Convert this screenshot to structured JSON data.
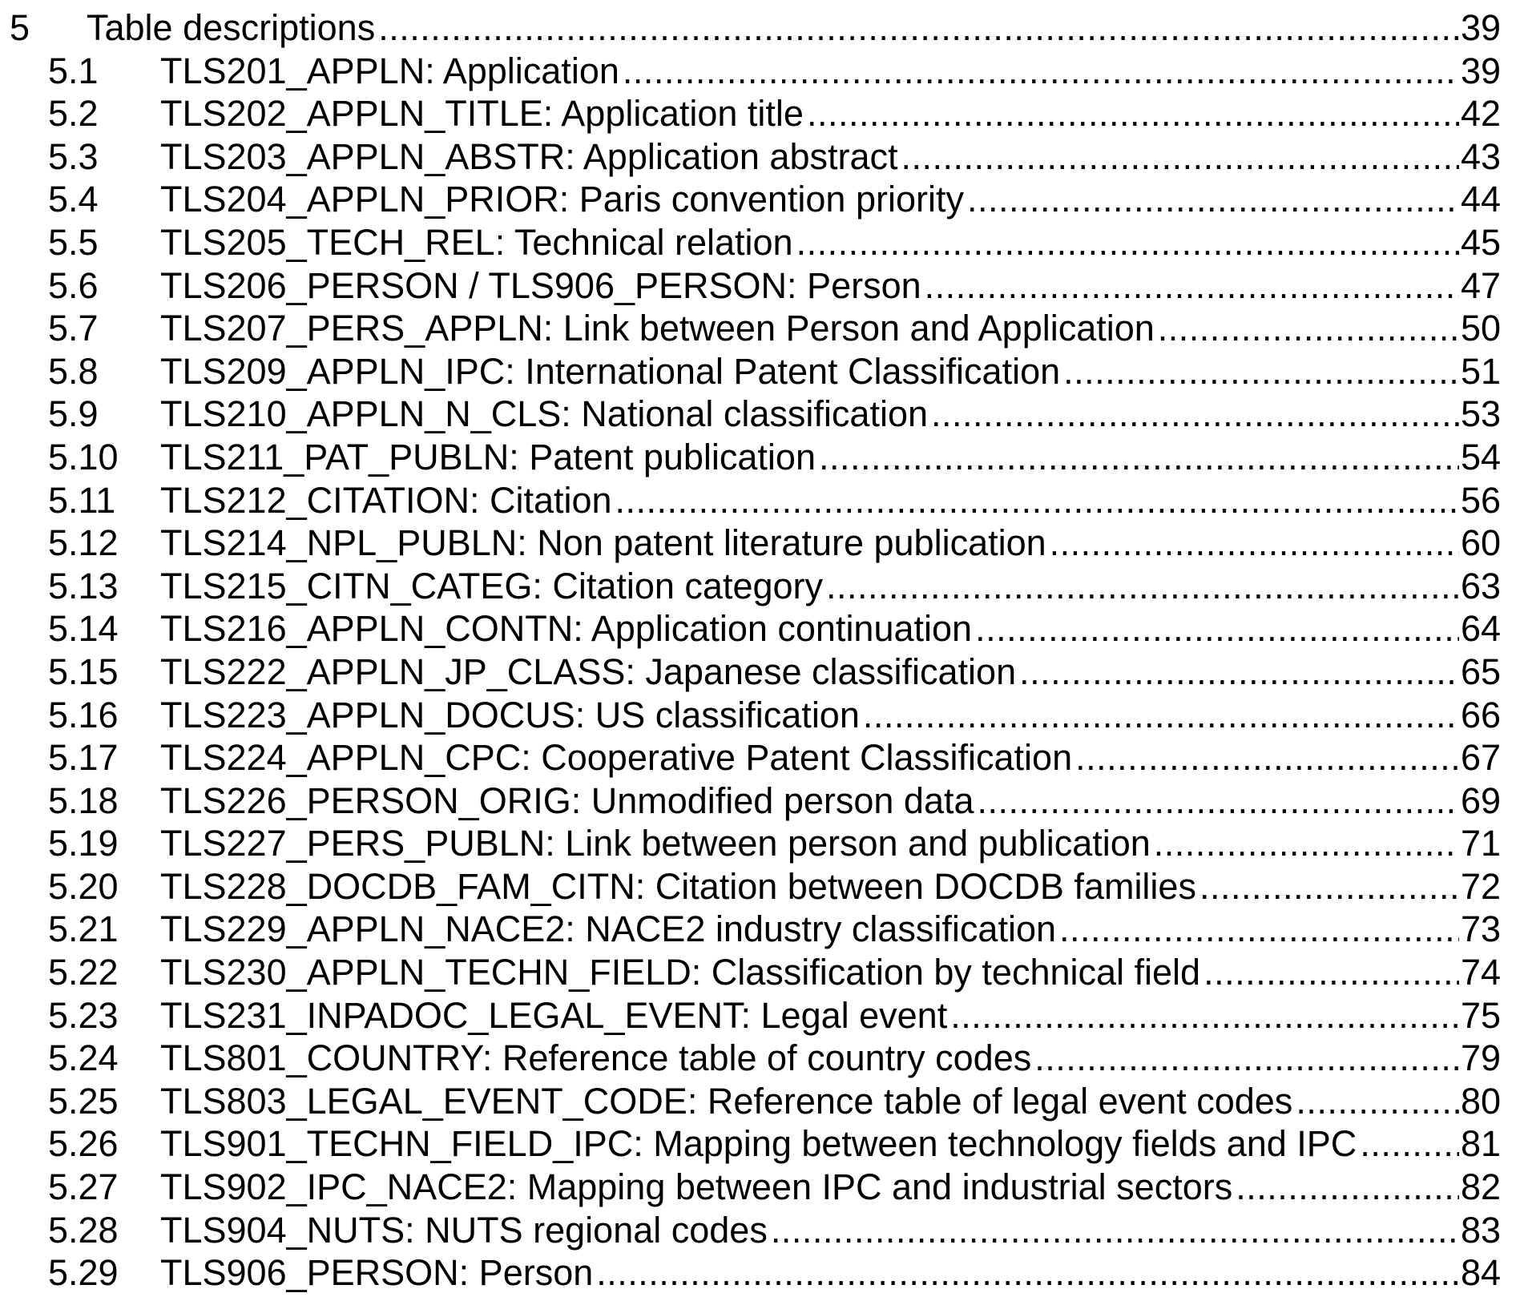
{
  "section": {
    "number": "5",
    "title": "Table descriptions",
    "page": "39"
  },
  "entries": [
    {
      "number": "5.1",
      "title": "TLS201_APPLN: Application",
      "page": "39"
    },
    {
      "number": "5.2",
      "title": "TLS202_APPLN_TITLE: Application title",
      "page": "42"
    },
    {
      "number": "5.3",
      "title": "TLS203_APPLN_ABSTR: Application abstract",
      "page": "43"
    },
    {
      "number": "5.4",
      "title": "TLS204_APPLN_PRIOR: Paris convention priority",
      "page": "44"
    },
    {
      "number": "5.5",
      "title": "TLS205_TECH_REL: Technical relation",
      "page": "45"
    },
    {
      "number": "5.6",
      "title": "TLS206_PERSON / TLS906_PERSON: Person",
      "page": "47"
    },
    {
      "number": "5.7",
      "title": "TLS207_PERS_APPLN: Link between Person and Application",
      "page": "50"
    },
    {
      "number": "5.8",
      "title": "TLS209_APPLN_IPC: International Patent Classification",
      "page": "51"
    },
    {
      "number": "5.9",
      "title": "TLS210_APPLN_N_CLS: National classification",
      "page": "53"
    },
    {
      "number": "5.10",
      "title": "TLS211_PAT_PUBLN: Patent publication",
      "page": "54"
    },
    {
      "number": "5.11",
      "title": "TLS212_CITATION: Citation",
      "page": "56"
    },
    {
      "number": "5.12",
      "title": "TLS214_NPL_PUBLN: Non patent literature publication",
      "page": "60"
    },
    {
      "number": "5.13",
      "title": "TLS215_CITN_CATEG: Citation category",
      "page": "63"
    },
    {
      "number": "5.14",
      "title": "TLS216_APPLN_CONTN: Application continuation",
      "page": "64"
    },
    {
      "number": "5.15",
      "title": "TLS222_APPLN_JP_CLASS: Japanese classification",
      "page": "65"
    },
    {
      "number": "5.16",
      "title": "TLS223_APPLN_DOCUS: US classification",
      "page": "66"
    },
    {
      "number": "5.17",
      "title": "TLS224_APPLN_CPC: Cooperative Patent Classification",
      "page": "67"
    },
    {
      "number": "5.18",
      "title": "TLS226_PERSON_ORIG: Unmodified person data",
      "page": "69"
    },
    {
      "number": "5.19",
      "title": "TLS227_PERS_PUBLN: Link between person and publication",
      "page": "71"
    },
    {
      "number": "5.20",
      "title": "TLS228_DOCDB_FAM_CITN: Citation between DOCDB families",
      "page": "72"
    },
    {
      "number": "5.21",
      "title": "TLS229_APPLN_NACE2: NACE2 industry classification",
      "page": "73"
    },
    {
      "number": "5.22",
      "title": "TLS230_APPLN_TECHN_FIELD: Classification by technical field",
      "page": "74"
    },
    {
      "number": "5.23",
      "title": "TLS231_INPADOC_LEGAL_EVENT: Legal event",
      "page": "75"
    },
    {
      "number": "5.24",
      "title": "TLS801_COUNTRY: Reference table of country codes",
      "page": "79"
    },
    {
      "number": "5.25",
      "title": "TLS803_LEGAL_EVENT_CODE: Reference table of legal event codes",
      "page": "80"
    },
    {
      "number": "5.26",
      "title": "TLS901_TECHN_FIELD_IPC: Mapping between technology fields and IPC",
      "page": "81"
    },
    {
      "number": "5.27",
      "title": "TLS902_IPC_NACE2: Mapping between IPC and industrial sectors",
      "page": "82"
    },
    {
      "number": "5.28",
      "title": "TLS904_NUTS: NUTS regional codes",
      "page": "83"
    },
    {
      "number": "5.29",
      "title": "TLS906_PERSON: Person",
      "page": "84"
    }
  ]
}
